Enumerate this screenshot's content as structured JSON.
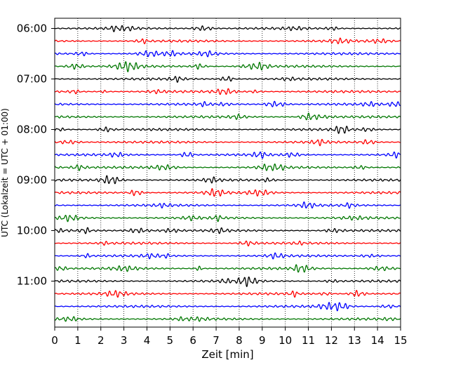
{
  "chart_data": {
    "type": "line",
    "title": "",
    "xlabel": "Zeit  [min]",
    "ylabel": "UTC (Lokalzeit = UTC + 01:00)",
    "xlim": [
      0,
      15
    ],
    "x_ticks": [
      0,
      1,
      2,
      3,
      4,
      5,
      6,
      7,
      8,
      9,
      10,
      11,
      12,
      13,
      14,
      15
    ],
    "x_tick_labels": [
      "0",
      "1",
      "2",
      "3",
      "4",
      "5",
      "6",
      "7",
      "8",
      "9",
      "10",
      "11",
      "12",
      "13",
      "14",
      "15"
    ],
    "grid": "vertical dotted",
    "trace_interval_min": 15,
    "y_tick_labels": [
      "06:00",
      "07:00",
      "08:00",
      "09:00",
      "10:00",
      "11:00"
    ],
    "series_colors": [
      "#000000",
      "#ff0000",
      "#0000ff",
      "#007700"
    ],
    "series": [
      {
        "start": "06:00",
        "color": "#000000"
      },
      {
        "start": "06:15",
        "color": "#ff0000"
      },
      {
        "start": "06:30",
        "color": "#0000ff"
      },
      {
        "start": "06:45",
        "color": "#007700"
      },
      {
        "start": "07:00",
        "color": "#000000"
      },
      {
        "start": "07:15",
        "color": "#ff0000"
      },
      {
        "start": "07:30",
        "color": "#0000ff"
      },
      {
        "start": "07:45",
        "color": "#007700"
      },
      {
        "start": "08:00",
        "color": "#000000"
      },
      {
        "start": "08:15",
        "color": "#ff0000"
      },
      {
        "start": "08:30",
        "color": "#0000ff"
      },
      {
        "start": "08:45",
        "color": "#007700"
      },
      {
        "start": "09:00",
        "color": "#000000"
      },
      {
        "start": "09:15",
        "color": "#ff0000"
      },
      {
        "start": "09:30",
        "color": "#0000ff"
      },
      {
        "start": "09:45",
        "color": "#007700"
      },
      {
        "start": "10:00",
        "color": "#000000"
      },
      {
        "start": "10:15",
        "color": "#ff0000"
      },
      {
        "start": "10:30",
        "color": "#0000ff"
      },
      {
        "start": "10:45",
        "color": "#007700"
      },
      {
        "start": "11:00",
        "color": "#000000"
      },
      {
        "start": "11:15",
        "color": "#ff0000"
      },
      {
        "start": "11:30",
        "color": "#0000ff"
      },
      {
        "start": "11:45",
        "color": "#007700"
      }
    ]
  }
}
